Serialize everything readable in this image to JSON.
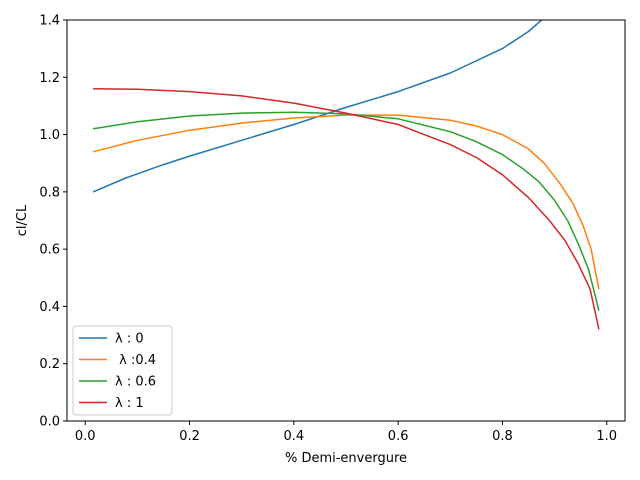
{
  "chart_data": {
    "type": "line",
    "title": "",
    "xlabel": "% Demi-envergure",
    "ylabel": "cl/CL",
    "xlim": [
      -0.035,
      1.035
    ],
    "ylim": [
      0.0,
      1.4
    ],
    "xticks": [
      0.0,
      0.2,
      0.4,
      0.6,
      0.8,
      1.0
    ],
    "xtick_labels": [
      "0.0",
      "0.2",
      "0.4",
      "0.6",
      "0.8",
      "1.0"
    ],
    "yticks": [
      0.0,
      0.2,
      0.4,
      0.6,
      0.8,
      1.0,
      1.2,
      1.4
    ],
    "ytick_labels": [
      "0.0",
      "0.2",
      "0.4",
      "0.6",
      "0.8",
      "1.0",
      "1.2",
      "1.4"
    ],
    "grid": false,
    "legend_position": "lower-left",
    "series": [
      {
        "name": "λ : 0",
        "color": "#1f77b4",
        "x": [
          0.015,
          0.08,
          0.15,
          0.2,
          0.3,
          0.4,
          0.5,
          0.6,
          0.7,
          0.8,
          0.85,
          0.875,
          0.9
        ],
        "y": [
          0.8,
          0.85,
          0.895,
          0.925,
          0.98,
          1.035,
          1.095,
          1.15,
          1.215,
          1.3,
          1.36,
          1.4,
          1.45
        ]
      },
      {
        "name": " λ :0.4",
        "color": "#ff7f0e",
        "x": [
          0.015,
          0.1,
          0.2,
          0.3,
          0.4,
          0.5,
          0.6,
          0.7,
          0.75,
          0.8,
          0.85,
          0.88,
          0.91,
          0.935,
          0.955,
          0.97,
          0.985
        ],
        "y": [
          0.94,
          0.98,
          1.015,
          1.04,
          1.058,
          1.068,
          1.068,
          1.05,
          1.03,
          1.0,
          0.95,
          0.9,
          0.83,
          0.76,
          0.68,
          0.6,
          0.46
        ]
      },
      {
        "name": "λ : 0.6",
        "color": "#2ca02c",
        "x": [
          0.015,
          0.1,
          0.2,
          0.3,
          0.4,
          0.5,
          0.6,
          0.7,
          0.75,
          0.8,
          0.84,
          0.87,
          0.9,
          0.925,
          0.945,
          0.965,
          0.985
        ],
        "y": [
          1.02,
          1.045,
          1.065,
          1.075,
          1.078,
          1.072,
          1.055,
          1.01,
          0.975,
          0.93,
          0.88,
          0.835,
          0.77,
          0.7,
          0.62,
          0.53,
          0.385
        ]
      },
      {
        "name": "λ : 1",
        "color": "#d62728",
        "x": [
          0.015,
          0.1,
          0.2,
          0.3,
          0.4,
          0.5,
          0.6,
          0.7,
          0.75,
          0.8,
          0.85,
          0.89,
          0.92,
          0.945,
          0.968,
          0.985
        ],
        "y": [
          1.16,
          1.158,
          1.15,
          1.135,
          1.11,
          1.075,
          1.035,
          0.965,
          0.92,
          0.86,
          0.78,
          0.7,
          0.63,
          0.55,
          0.46,
          0.32
        ]
      }
    ]
  }
}
